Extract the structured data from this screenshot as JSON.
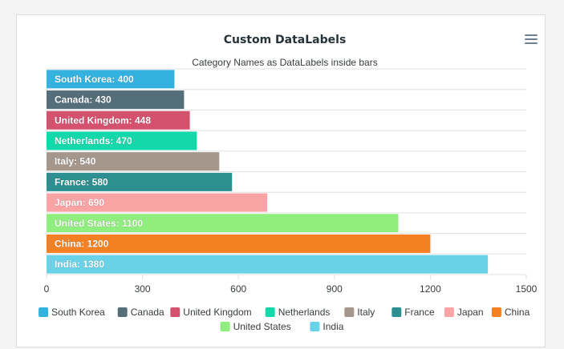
{
  "chart_data": {
    "type": "bar",
    "orientation": "horizontal",
    "title": "Custom DataLabels",
    "subtitle": "Category Names as DataLabels inside bars",
    "categories": [
      "South Korea",
      "Canada",
      "United Kingdom",
      "Netherlands",
      "Italy",
      "France",
      "Japan",
      "United States",
      "China",
      "India"
    ],
    "values": [
      400,
      430,
      448,
      470,
      540,
      580,
      690,
      1100,
      1200,
      1380
    ],
    "colors": [
      "#33b2df",
      "#546e7a",
      "#d4526e",
      "#13d8aa",
      "#a5978b",
      "#2b908f",
      "#f9a3a4",
      "#90ee7e",
      "#f48024",
      "#69d2e7"
    ],
    "xlim": [
      0,
      1500
    ],
    "xticks": [
      0,
      300,
      600,
      900,
      1200,
      1500
    ],
    "grid": true,
    "legend": "bottom-center",
    "datalabel_format": "{category}: {value}"
  },
  "toolbar": {
    "menu_icon": "hamburger-menu-icon"
  }
}
